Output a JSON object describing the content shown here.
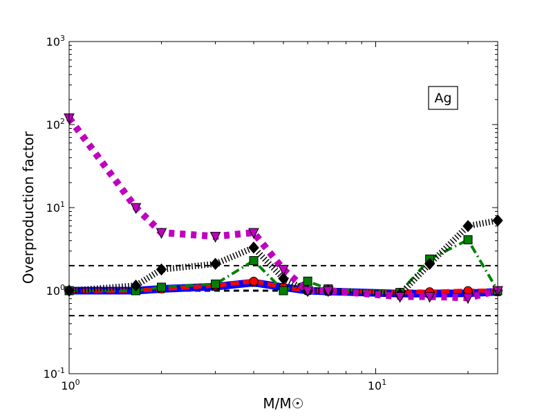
{
  "chart_data": {
    "type": "line",
    "title": "",
    "xlabel": "M/M☉",
    "ylabel": "Overproduction factor",
    "xscale": "log",
    "yscale": "log",
    "xlim": [
      1,
      25
    ],
    "ylim": [
      0.1,
      1000
    ],
    "annotation": "Ag",
    "x_tick_labels": [
      {
        "value": 1,
        "base": "10",
        "exp": "0"
      },
      {
        "value": 10,
        "base": "10",
        "exp": "1"
      }
    ],
    "y_tick_labels": [
      {
        "value": 0.1,
        "base": "10",
        "exp": "-1"
      },
      {
        "value": 1,
        "base": "10",
        "exp": "0"
      },
      {
        "value": 10,
        "base": "10",
        "exp": "1"
      },
      {
        "value": 100,
        "base": "10",
        "exp": "2"
      },
      {
        "value": 1000,
        "base": "10",
        "exp": "3"
      }
    ],
    "reference_lines": [
      2,
      1,
      0.5
    ],
    "x": [
      1,
      1.65,
      2,
      3,
      4,
      5,
      6,
      7,
      12,
      15,
      20,
      25
    ],
    "series": [
      {
        "name": "blue-solid-pentagon",
        "color": "#0000ff",
        "marker": "pentagon",
        "values": [
          1.0,
          1.0,
          1.05,
          1.12,
          1.25,
          1.1,
          1.0,
          0.98,
          0.92,
          0.92,
          0.93,
          0.97
        ]
      },
      {
        "name": "red-dashed-circle",
        "color": "#ff0000",
        "marker": "circle",
        "values": [
          1.0,
          1.0,
          1.05,
          1.15,
          1.3,
          1.1,
          1.0,
          1.0,
          0.95,
          0.97,
          1.0,
          1.0
        ]
      },
      {
        "name": "green-dashdot-square",
        "color": "#008000",
        "marker": "square",
        "values": [
          1.0,
          1.0,
          1.1,
          1.2,
          2.3,
          1.0,
          1.3,
          1.05,
          0.95,
          2.4,
          4.1,
          1.0
        ]
      },
      {
        "name": "black-dotted-diamond",
        "color": "#000000",
        "marker": "diamond",
        "values": [
          1.0,
          1.15,
          1.8,
          2.1,
          3.3,
          1.4,
          1.0,
          1.0,
          0.9,
          2.1,
          6.0,
          7.0
        ]
      },
      {
        "name": "magenta-dotted-triangle",
        "color": "#bf00bf",
        "marker": "triangle-down",
        "values": [
          120,
          10,
          5.0,
          4.5,
          5.0,
          1.8,
          1.0,
          1.0,
          0.85,
          0.85,
          0.82,
          1.0
        ]
      }
    ]
  }
}
